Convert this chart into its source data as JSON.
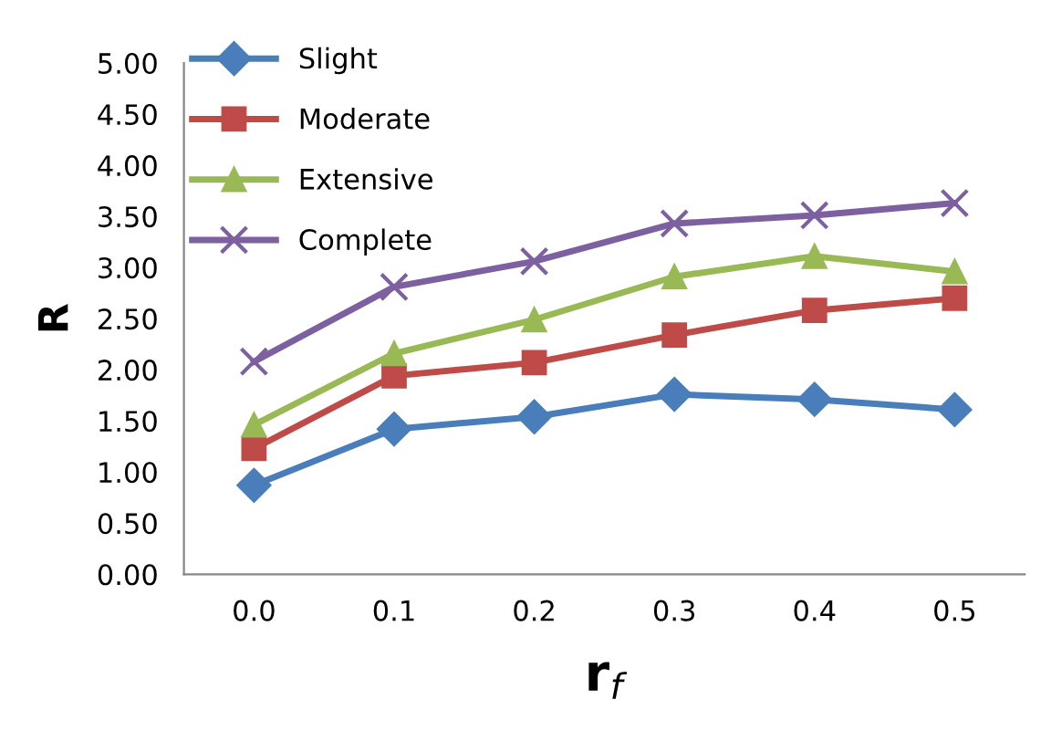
{
  "chart_data": {
    "type": "line",
    "xlabel": "r$_{f}$",
    "ylabel": "R",
    "categories": [
      "0.0",
      "0.1",
      "0.2",
      "0.3",
      "0.4",
      "0.5"
    ],
    "ylim": [
      0,
      5
    ],
    "yticks": [
      {
        "value": 0,
        "label": "0.00"
      },
      {
        "value": 0.5,
        "label": "0.50"
      },
      {
        "value": 1,
        "label": "1.00"
      },
      {
        "value": 1.5,
        "label": "1.50"
      },
      {
        "value": 2,
        "label": "2.00"
      },
      {
        "value": 2.5,
        "label": "2.50"
      },
      {
        "value": 3,
        "label": "3.00"
      },
      {
        "value": 3.5,
        "label": "3.50"
      },
      {
        "value": 4,
        "label": "4.00"
      },
      {
        "value": 4.5,
        "label": "4.50"
      },
      {
        "value": 5,
        "label": "5.00"
      }
    ],
    "grid": false,
    "legend": "top left",
    "series": [
      {
        "name": "Slight",
        "color": "#4a7ebb",
        "marker": "diamond",
        "values": [
          0.87,
          1.42,
          1.54,
          1.76,
          1.71,
          1.61
        ]
      },
      {
        "name": "Moderate",
        "color": "#be4b48",
        "marker": "square",
        "values": [
          1.23,
          1.94,
          2.07,
          2.34,
          2.58,
          2.7
        ]
      },
      {
        "name": "Extensive",
        "color": "#98b954",
        "marker": "triangle",
        "values": [
          1.46,
          2.16,
          2.49,
          2.91,
          3.11,
          2.96
        ]
      },
      {
        "name": "Complete",
        "color": "#7d60a0",
        "marker": "cross",
        "values": [
          2.08,
          2.81,
          3.06,
          3.43,
          3.51,
          3.63
        ]
      }
    ]
  }
}
